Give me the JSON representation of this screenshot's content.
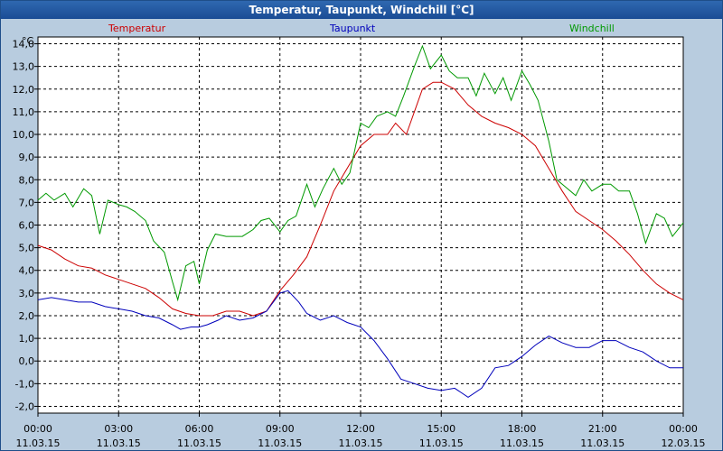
{
  "window": {
    "title": "Temperatur, Taupunkt, Windchill [°C]"
  },
  "colors": {
    "plot_bg": "#ffffff",
    "frame_bg": "#b8ccdf",
    "temperatur": "#cc0000",
    "taupunkt": "#0000bb",
    "windchill": "#009900",
    "grid": "#000000"
  },
  "chart_data": {
    "type": "line",
    "title": "Temperatur, Taupunkt, Windchill [°C]",
    "ylabel": "°C",
    "ylim": [
      -2.3,
      14.3
    ],
    "yticks": [
      "14,0",
      "13,0",
      "12,0",
      "11,0",
      "10,0",
      "9,0",
      "8,0",
      "7,0",
      "6,0",
      "5,0",
      "4,0",
      "3,0",
      "2,0",
      "1,0",
      "0,0",
      "-1,0",
      "-2,0"
    ],
    "xlim_hours": [
      0,
      24
    ],
    "xticks": [
      {
        "time": "00:00",
        "date": "11.03.15"
      },
      {
        "time": "03:00",
        "date": "11.03.15"
      },
      {
        "time": "06:00",
        "date": "11.03.15"
      },
      {
        "time": "09:00",
        "date": "11.03.15"
      },
      {
        "time": "12:00",
        "date": "11.03.15"
      },
      {
        "time": "15:00",
        "date": "11.03.15"
      },
      {
        "time": "18:00",
        "date": "11.03.15"
      },
      {
        "time": "21:00",
        "date": "11.03.15"
      },
      {
        "time": "00:00",
        "date": "12.03.15"
      }
    ],
    "grid": true,
    "legend_position": "top",
    "series": [
      {
        "name": "Temperatur",
        "color": "#cc0000",
        "points": [
          [
            0,
            5.1
          ],
          [
            0.5,
            4.9
          ],
          [
            1,
            4.5
          ],
          [
            1.5,
            4.2
          ],
          [
            2,
            4.1
          ],
          [
            2.5,
            3.8
          ],
          [
            3,
            3.6
          ],
          [
            3.5,
            3.4
          ],
          [
            4,
            3.2
          ],
          [
            4.5,
            2.8
          ],
          [
            5,
            2.3
          ],
          [
            5.5,
            2.1
          ],
          [
            6,
            2.0
          ],
          [
            6.5,
            2.0
          ],
          [
            7,
            2.2
          ],
          [
            7.5,
            2.2
          ],
          [
            8,
            2.0
          ],
          [
            8.5,
            2.2
          ],
          [
            9,
            3.1
          ],
          [
            9.5,
            3.8
          ],
          [
            10,
            4.6
          ],
          [
            10.5,
            6.0
          ],
          [
            11,
            7.5
          ],
          [
            11.5,
            8.5
          ],
          [
            12,
            9.5
          ],
          [
            12.5,
            10.0
          ],
          [
            13,
            10.0
          ],
          [
            13.3,
            10.5
          ],
          [
            13.7,
            10.0
          ],
          [
            14,
            11.0
          ],
          [
            14.3,
            12.0
          ],
          [
            14.7,
            12.3
          ],
          [
            15,
            12.3
          ],
          [
            15.5,
            12.0
          ],
          [
            16,
            11.3
          ],
          [
            16.5,
            10.8
          ],
          [
            17,
            10.5
          ],
          [
            17.5,
            10.3
          ],
          [
            18,
            10.0
          ],
          [
            18.5,
            9.5
          ],
          [
            19,
            8.5
          ],
          [
            19.5,
            7.5
          ],
          [
            20,
            6.6
          ],
          [
            20.5,
            6.2
          ],
          [
            21,
            5.8
          ],
          [
            21.5,
            5.3
          ],
          [
            22,
            4.7
          ],
          [
            22.5,
            4.0
          ],
          [
            23,
            3.4
          ],
          [
            23.5,
            3.0
          ],
          [
            24,
            2.7
          ]
        ]
      },
      {
        "name": "Taupunkt",
        "color": "#0000bb",
        "points": [
          [
            0,
            2.7
          ],
          [
            0.5,
            2.8
          ],
          [
            1,
            2.7
          ],
          [
            1.5,
            2.6
          ],
          [
            2,
            2.6
          ],
          [
            2.5,
            2.4
          ],
          [
            3,
            2.3
          ],
          [
            3.5,
            2.2
          ],
          [
            4,
            2.0
          ],
          [
            4.5,
            1.9
          ],
          [
            5,
            1.6
          ],
          [
            5.3,
            1.4
          ],
          [
            5.7,
            1.5
          ],
          [
            6,
            1.5
          ],
          [
            6.3,
            1.6
          ],
          [
            6.7,
            1.8
          ],
          [
            7,
            2.0
          ],
          [
            7.5,
            1.8
          ],
          [
            8,
            1.9
          ],
          [
            8.5,
            2.2
          ],
          [
            9,
            3.0
          ],
          [
            9.3,
            3.1
          ],
          [
            9.7,
            2.6
          ],
          [
            10,
            2.1
          ],
          [
            10.5,
            1.8
          ],
          [
            11,
            2.0
          ],
          [
            11.5,
            1.7
          ],
          [
            12,
            1.5
          ],
          [
            12.5,
            0.9
          ],
          [
            13,
            0.1
          ],
          [
            13.5,
            -0.8
          ],
          [
            14,
            -1.0
          ],
          [
            14.5,
            -1.2
          ],
          [
            15,
            -1.3
          ],
          [
            15.5,
            -1.2
          ],
          [
            16,
            -1.6
          ],
          [
            16.5,
            -1.2
          ],
          [
            17,
            -0.3
          ],
          [
            17.5,
            -0.2
          ],
          [
            18,
            0.2
          ],
          [
            18.5,
            0.7
          ],
          [
            19,
            1.1
          ],
          [
            19.5,
            0.8
          ],
          [
            20,
            0.6
          ],
          [
            20.5,
            0.6
          ],
          [
            21,
            0.9
          ],
          [
            21.5,
            0.9
          ],
          [
            22,
            0.6
          ],
          [
            22.5,
            0.4
          ],
          [
            23,
            0.0
          ],
          [
            23.5,
            -0.3
          ],
          [
            24,
            -0.3
          ]
        ]
      },
      {
        "name": "Windchill",
        "color": "#009900",
        "points": [
          [
            0,
            7.1
          ],
          [
            0.3,
            7.4
          ],
          [
            0.6,
            7.1
          ],
          [
            1,
            7.4
          ],
          [
            1.3,
            6.8
          ],
          [
            1.7,
            7.6
          ],
          [
            2,
            7.3
          ],
          [
            2.3,
            5.6
          ],
          [
            2.6,
            7.1
          ],
          [
            3,
            6.9
          ],
          [
            3.3,
            6.8
          ],
          [
            3.6,
            6.6
          ],
          [
            4,
            6.2
          ],
          [
            4.3,
            5.3
          ],
          [
            4.7,
            4.8
          ],
          [
            5,
            3.5
          ],
          [
            5.2,
            2.7
          ],
          [
            5.5,
            4.2
          ],
          [
            5.8,
            4.4
          ],
          [
            6,
            3.4
          ],
          [
            6.3,
            4.9
          ],
          [
            6.6,
            5.6
          ],
          [
            7,
            5.5
          ],
          [
            7.3,
            5.5
          ],
          [
            7.6,
            5.5
          ],
          [
            8,
            5.8
          ],
          [
            8.3,
            6.2
          ],
          [
            8.6,
            6.3
          ],
          [
            9,
            5.7
          ],
          [
            9.3,
            6.2
          ],
          [
            9.6,
            6.4
          ],
          [
            10,
            7.8
          ],
          [
            10.3,
            6.8
          ],
          [
            10.6,
            7.6
          ],
          [
            11,
            8.5
          ],
          [
            11.3,
            7.8
          ],
          [
            11.6,
            8.3
          ],
          [
            12,
            10.5
          ],
          [
            12.3,
            10.3
          ],
          [
            12.6,
            10.8
          ],
          [
            13,
            11.0
          ],
          [
            13.3,
            10.8
          ],
          [
            13.6,
            11.7
          ],
          [
            14,
            13.0
          ],
          [
            14.3,
            13.9
          ],
          [
            14.6,
            12.9
          ],
          [
            15,
            13.5
          ],
          [
            15.3,
            12.8
          ],
          [
            15.6,
            12.5
          ],
          [
            16,
            12.5
          ],
          [
            16.3,
            11.7
          ],
          [
            16.6,
            12.7
          ],
          [
            17,
            11.8
          ],
          [
            17.3,
            12.5
          ],
          [
            17.6,
            11.5
          ],
          [
            18,
            12.8
          ],
          [
            18.3,
            12.2
          ],
          [
            18.6,
            11.5
          ],
          [
            19,
            9.7
          ],
          [
            19.3,
            8.0
          ],
          [
            19.6,
            7.7
          ],
          [
            20,
            7.3
          ],
          [
            20.3,
            8.0
          ],
          [
            20.6,
            7.5
          ],
          [
            21,
            7.8
          ],
          [
            21.3,
            7.8
          ],
          [
            21.6,
            7.5
          ],
          [
            22,
            7.5
          ],
          [
            22.3,
            6.5
          ],
          [
            22.6,
            5.2
          ],
          [
            23,
            6.5
          ],
          [
            23.3,
            6.3
          ],
          [
            23.6,
            5.5
          ],
          [
            24,
            6.1
          ]
        ]
      }
    ]
  }
}
